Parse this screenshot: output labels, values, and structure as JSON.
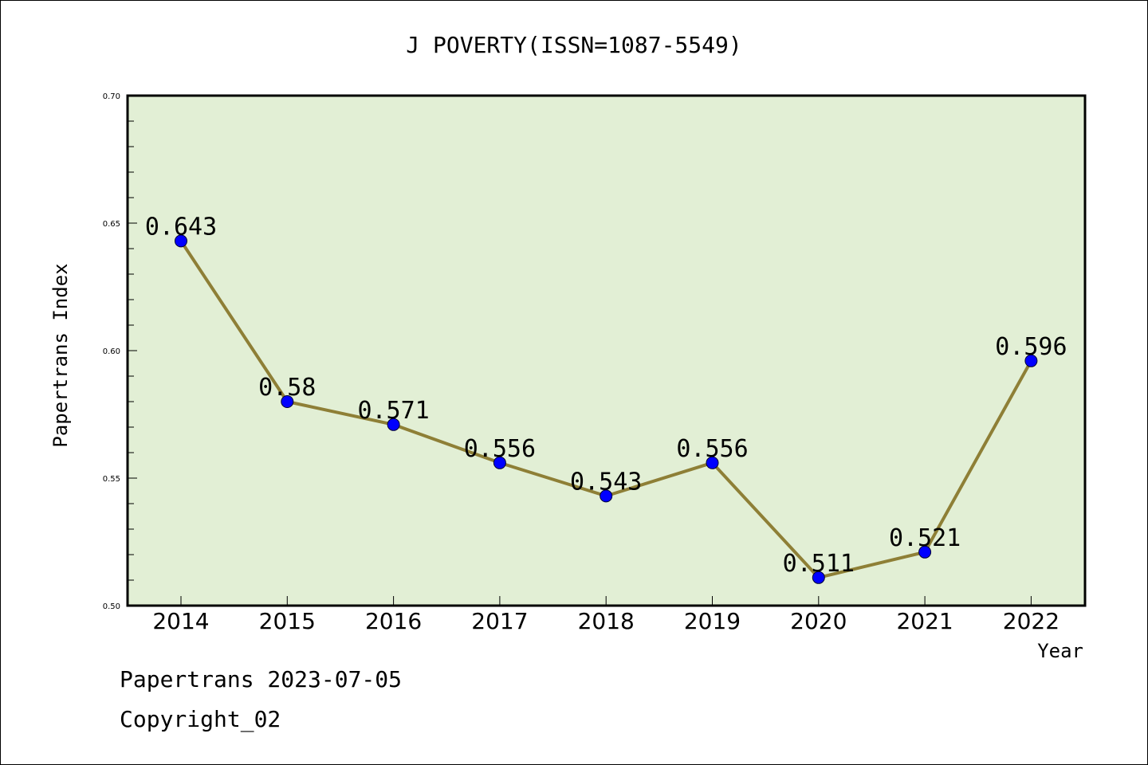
{
  "chart_data": {
    "type": "line",
    "title": "J POVERTY(ISSN=1087-5549)",
    "xlabel": "Year",
    "ylabel": "Papertrans Index",
    "categories": [
      "2014",
      "2015",
      "2016",
      "2017",
      "2018",
      "2019",
      "2020",
      "2021",
      "2022"
    ],
    "values": [
      0.643,
      0.58,
      0.571,
      0.556,
      0.543,
      0.556,
      0.511,
      0.521,
      0.596
    ],
    "value_labels": [
      "0.643",
      "0.58",
      "0.571",
      "0.556",
      "0.543",
      "0.556",
      "0.511",
      "0.521",
      "0.596"
    ],
    "ylim": [
      0.5,
      0.7
    ],
    "yticks": [
      "0.50",
      "0.55",
      "0.60",
      "0.65",
      "0.70"
    ],
    "grid": false,
    "colors": {
      "plot_background": "#e2efd5",
      "line": "#8e7f36",
      "marker": "#0000ff"
    }
  },
  "footer": {
    "line1": "Papertrans 2023-07-05",
    "line2": "Copyright_02"
  }
}
